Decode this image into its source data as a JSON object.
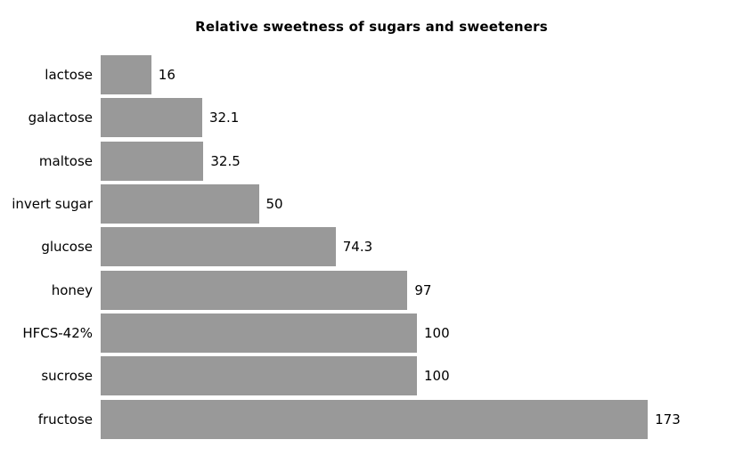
{
  "chart_data": {
    "type": "bar",
    "orientation": "horizontal",
    "title": "Relative sweetness of sugars and sweeteners",
    "categories": [
      "lactose",
      "galactose",
      "maltose",
      "invert sugar",
      "glucose",
      "honey",
      "HFCS-42%",
      "sucrose",
      "fructose"
    ],
    "values": [
      16,
      32.1,
      32.5,
      50,
      74.3,
      97,
      100,
      100,
      173
    ],
    "value_labels": [
      "16",
      "32.1",
      "32.5",
      "50",
      "74.3",
      "97",
      "100",
      "100",
      "173"
    ],
    "xlabel": "",
    "ylabel": "",
    "xlim": [
      0,
      180
    ],
    "grid": false,
    "legend_position": "none",
    "bar_color": "#999999",
    "background_color": "#ffffff",
    "text_color": "#000000"
  }
}
